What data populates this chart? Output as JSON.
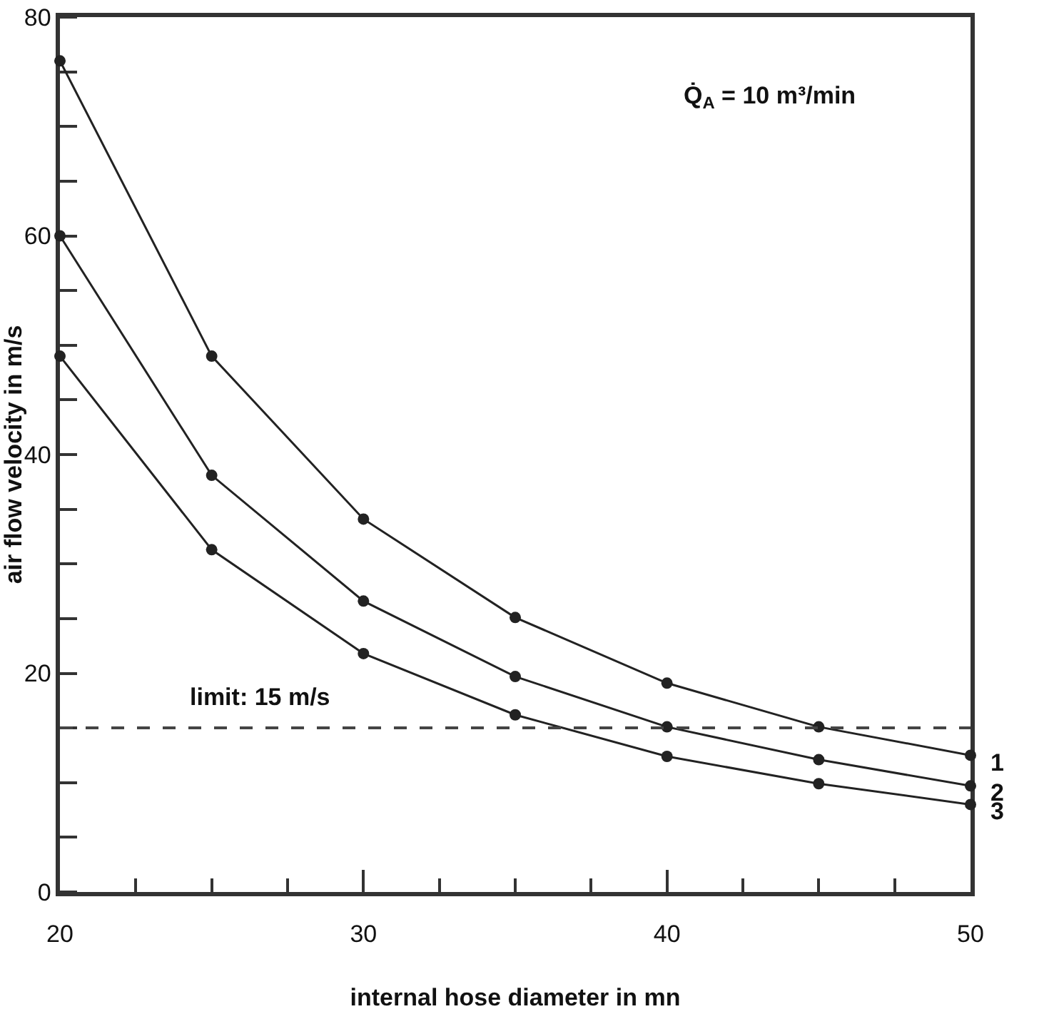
{
  "chart_data": {
    "type": "line",
    "xlabel": "internal hose diameter in mn",
    "ylabel": "air flow velocity in m/s",
    "x": [
      20,
      25,
      30,
      35,
      40,
      45,
      50
    ],
    "series": [
      {
        "name": "1",
        "color": "#222222",
        "values": [
          76,
          49,
          34.1,
          25.1,
          19.1,
          15.1,
          12.5
        ]
      },
      {
        "name": "2",
        "color": "#222222",
        "values": [
          60,
          38.1,
          26.6,
          19.7,
          15.1,
          12.1,
          9.7
        ]
      },
      {
        "name": "3",
        "color": "#222222",
        "values": [
          49,
          31.3,
          21.8,
          16.2,
          12.4,
          9.9,
          8.0
        ]
      }
    ],
    "xlim": [
      20,
      50
    ],
    "xticks": [
      20,
      30,
      40,
      50
    ],
    "ylim": [
      0,
      80
    ],
    "yticks": [
      0,
      20,
      40,
      60,
      80
    ],
    "ref_lines": [
      {
        "axis": "y",
        "value": 15,
        "label": "limit: 15 m/s",
        "color": "#444444",
        "line_style": "dashed"
      }
    ],
    "annotations": [
      "Q̇$_{A}$ = 10 m³/min"
    ],
    "grid": false,
    "legend": false,
    "marker": "circle",
    "line_style": "solid"
  }
}
